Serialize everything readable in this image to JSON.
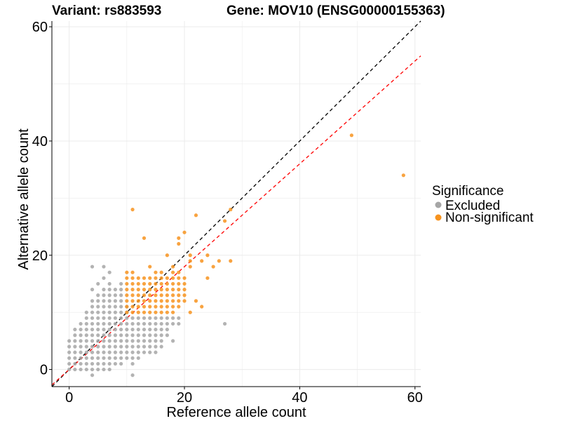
{
  "header": {
    "variant_title": "Variant: rs883593",
    "gene_title": "Gene: MOV10 (ENSG00000155363)"
  },
  "chart_data": {
    "type": "scatter",
    "xlabel": "Reference allele count",
    "ylabel": "Alternative allele count",
    "xlim": [
      -3,
      61
    ],
    "ylim": [
      -3,
      61
    ],
    "x_ticks": [
      0,
      20,
      40,
      60
    ],
    "y_ticks": [
      0,
      20,
      40,
      60
    ],
    "grid": true,
    "legend_position": "right",
    "legend_title": "Significance",
    "reference_lines": [
      {
        "kind": "identity",
        "slope": 1.0,
        "intercept": 0,
        "color": "#000000",
        "style": "dashed"
      },
      {
        "kind": "fit",
        "slope": 0.9,
        "intercept": 0,
        "color": "#ff0000",
        "style": "dashed"
      }
    ],
    "series": [
      {
        "name": "Excluded",
        "color": "#a6a6a6",
        "points": [
          [
            0,
            0
          ],
          [
            0,
            1
          ],
          [
            0,
            2
          ],
          [
            0,
            3
          ],
          [
            0,
            4
          ],
          [
            0,
            5
          ],
          [
            1,
            0
          ],
          [
            1,
            1
          ],
          [
            1,
            2
          ],
          [
            1,
            3
          ],
          [
            1,
            4
          ],
          [
            1,
            5
          ],
          [
            1,
            6
          ],
          [
            1,
            7
          ],
          [
            2,
            0
          ],
          [
            2,
            1
          ],
          [
            2,
            2
          ],
          [
            2,
            3
          ],
          [
            2,
            4
          ],
          [
            2,
            5
          ],
          [
            2,
            6
          ],
          [
            2,
            7
          ],
          [
            2,
            8
          ],
          [
            3,
            0
          ],
          [
            3,
            1
          ],
          [
            3,
            2
          ],
          [
            3,
            3
          ],
          [
            3,
            4
          ],
          [
            3,
            5
          ],
          [
            3,
            6
          ],
          [
            3,
            7
          ],
          [
            3,
            8
          ],
          [
            3,
            9
          ],
          [
            3,
            10
          ],
          [
            4,
            -1
          ],
          [
            4,
            0
          ],
          [
            4,
            1
          ],
          [
            4,
            2
          ],
          [
            4,
            3
          ],
          [
            4,
            4
          ],
          [
            4,
            5
          ],
          [
            4,
            6
          ],
          [
            4,
            7
          ],
          [
            4,
            8
          ],
          [
            4,
            9
          ],
          [
            4,
            10
          ],
          [
            4,
            11
          ],
          [
            4,
            12
          ],
          [
            4,
            14
          ],
          [
            5,
            0
          ],
          [
            5,
            1
          ],
          [
            5,
            2
          ],
          [
            5,
            3
          ],
          [
            5,
            4
          ],
          [
            5,
            5
          ],
          [
            5,
            6
          ],
          [
            5,
            7
          ],
          [
            5,
            8
          ],
          [
            5,
            9
          ],
          [
            5,
            10
          ],
          [
            5,
            11
          ],
          [
            5,
            12
          ],
          [
            5,
            13
          ],
          [
            5,
            15
          ],
          [
            6,
            0
          ],
          [
            6,
            1
          ],
          [
            6,
            2
          ],
          [
            6,
            3
          ],
          [
            6,
            4
          ],
          [
            6,
            5
          ],
          [
            6,
            6
          ],
          [
            6,
            7
          ],
          [
            6,
            8
          ],
          [
            6,
            9
          ],
          [
            6,
            10
          ],
          [
            6,
            11
          ],
          [
            6,
            12
          ],
          [
            6,
            13
          ],
          [
            6,
            14
          ],
          [
            6,
            16
          ],
          [
            7,
            0
          ],
          [
            7,
            1
          ],
          [
            7,
            2
          ],
          [
            7,
            3
          ],
          [
            7,
            4
          ],
          [
            7,
            5
          ],
          [
            7,
            6
          ],
          [
            7,
            7
          ],
          [
            7,
            8
          ],
          [
            7,
            9
          ],
          [
            7,
            10
          ],
          [
            7,
            11
          ],
          [
            7,
            12
          ],
          [
            7,
            13
          ],
          [
            7,
            14
          ],
          [
            7,
            15
          ],
          [
            7,
            17
          ],
          [
            8,
            1
          ],
          [
            8,
            2
          ],
          [
            8,
            3
          ],
          [
            8,
            4
          ],
          [
            8,
            5
          ],
          [
            8,
            6
          ],
          [
            8,
            7
          ],
          [
            8,
            8
          ],
          [
            8,
            9
          ],
          [
            8,
            10
          ],
          [
            8,
            11
          ],
          [
            8,
            12
          ],
          [
            8,
            13
          ],
          [
            8,
            14
          ],
          [
            9,
            1
          ],
          [
            9,
            2
          ],
          [
            9,
            3
          ],
          [
            9,
            4
          ],
          [
            9,
            5
          ],
          [
            9,
            6
          ],
          [
            9,
            7
          ],
          [
            9,
            8
          ],
          [
            9,
            9
          ],
          [
            9,
            10
          ],
          [
            9,
            11
          ],
          [
            9,
            12
          ],
          [
            9,
            13
          ],
          [
            9,
            14
          ],
          [
            9,
            15
          ],
          [
            10,
            2
          ],
          [
            10,
            3
          ],
          [
            10,
            4
          ],
          [
            10,
            5
          ],
          [
            10,
            6
          ],
          [
            10,
            7
          ],
          [
            10,
            8
          ],
          [
            10,
            9
          ],
          [
            10,
            10
          ],
          [
            10,
            11
          ],
          [
            11,
            -1
          ],
          [
            11,
            1
          ],
          [
            11,
            2
          ],
          [
            11,
            3
          ],
          [
            11,
            4
          ],
          [
            11,
            5
          ],
          [
            11,
            6
          ],
          [
            11,
            7
          ],
          [
            11,
            8
          ],
          [
            11,
            9
          ],
          [
            12,
            2
          ],
          [
            12,
            3
          ],
          [
            12,
            4
          ],
          [
            12,
            5
          ],
          [
            12,
            6
          ],
          [
            12,
            7
          ],
          [
            12,
            8
          ],
          [
            12,
            9
          ],
          [
            13,
            3
          ],
          [
            13,
            4
          ],
          [
            13,
            5
          ],
          [
            13,
            6
          ],
          [
            13,
            7
          ],
          [
            13,
            8
          ],
          [
            13,
            9
          ],
          [
            14,
            3
          ],
          [
            14,
            4
          ],
          [
            14,
            5
          ],
          [
            14,
            6
          ],
          [
            14,
            7
          ],
          [
            14,
            8
          ],
          [
            14,
            9
          ],
          [
            15,
            3
          ],
          [
            15,
            4
          ],
          [
            15,
            5
          ],
          [
            15,
            6
          ],
          [
            15,
            7
          ],
          [
            15,
            8
          ],
          [
            15,
            9
          ],
          [
            16,
            4
          ],
          [
            16,
            5
          ],
          [
            16,
            6
          ],
          [
            16,
            7
          ],
          [
            16,
            8
          ],
          [
            16,
            9
          ],
          [
            17,
            6
          ],
          [
            17,
            7
          ],
          [
            17,
            8
          ],
          [
            17,
            9
          ],
          [
            18,
            5
          ],
          [
            18,
            8
          ],
          [
            18,
            9
          ],
          [
            19,
            8
          ],
          [
            19,
            9
          ],
          [
            4,
            18
          ],
          [
            6,
            18
          ],
          [
            27,
            8
          ]
        ]
      },
      {
        "name": "Non-significant",
        "color": "#f7931e",
        "points": [
          [
            10,
            10
          ],
          [
            10,
            11
          ],
          [
            10,
            12
          ],
          [
            10,
            13
          ],
          [
            10,
            14
          ],
          [
            10,
            15
          ],
          [
            10,
            16
          ],
          [
            10,
            17
          ],
          [
            11,
            10
          ],
          [
            11,
            11
          ],
          [
            11,
            12
          ],
          [
            11,
            13
          ],
          [
            11,
            14
          ],
          [
            11,
            15
          ],
          [
            11,
            16
          ],
          [
            11,
            17
          ],
          [
            11,
            28
          ],
          [
            12,
            10
          ],
          [
            12,
            11
          ],
          [
            12,
            12
          ],
          [
            12,
            13
          ],
          [
            12,
            14
          ],
          [
            12,
            15
          ],
          [
            12,
            16
          ],
          [
            13,
            10
          ],
          [
            13,
            11
          ],
          [
            13,
            12
          ],
          [
            13,
            13
          ],
          [
            13,
            14
          ],
          [
            13,
            15
          ],
          [
            13,
            16
          ],
          [
            13,
            23
          ],
          [
            14,
            10
          ],
          [
            14,
            11
          ],
          [
            14,
            12
          ],
          [
            14,
            13
          ],
          [
            14,
            14
          ],
          [
            14,
            15
          ],
          [
            14,
            16
          ],
          [
            14,
            18
          ],
          [
            15,
            10
          ],
          [
            15,
            11
          ],
          [
            15,
            12
          ],
          [
            15,
            13
          ],
          [
            15,
            14
          ],
          [
            15,
            15
          ],
          [
            15,
            16
          ],
          [
            15,
            17
          ],
          [
            16,
            10
          ],
          [
            16,
            11
          ],
          [
            16,
            12
          ],
          [
            16,
            13
          ],
          [
            16,
            14
          ],
          [
            16,
            15
          ],
          [
            16,
            16
          ],
          [
            16,
            17
          ],
          [
            17,
            10
          ],
          [
            17,
            11
          ],
          [
            17,
            12
          ],
          [
            17,
            13
          ],
          [
            17,
            14
          ],
          [
            17,
            15
          ],
          [
            17,
            16
          ],
          [
            17,
            20
          ],
          [
            18,
            10
          ],
          [
            18,
            11
          ],
          [
            18,
            12
          ],
          [
            18,
            13
          ],
          [
            18,
            14
          ],
          [
            18,
            15
          ],
          [
            18,
            16
          ],
          [
            18,
            17
          ],
          [
            18,
            18
          ],
          [
            19,
            11
          ],
          [
            19,
            12
          ],
          [
            19,
            13
          ],
          [
            19,
            14
          ],
          [
            19,
            15
          ],
          [
            19,
            16
          ],
          [
            19,
            17
          ],
          [
            19,
            22
          ],
          [
            19,
            23
          ],
          [
            20,
            12
          ],
          [
            20,
            13
          ],
          [
            20,
            14
          ],
          [
            20,
            15
          ],
          [
            20,
            16
          ],
          [
            20,
            24
          ],
          [
            21,
            10
          ],
          [
            21,
            18
          ],
          [
            21,
            19
          ],
          [
            21,
            20
          ],
          [
            22,
            12
          ],
          [
            22,
            27
          ],
          [
            23,
            11
          ],
          [
            23,
            19
          ],
          [
            24,
            16
          ],
          [
            24,
            20
          ],
          [
            25,
            18
          ],
          [
            26,
            19
          ],
          [
            27,
            26
          ],
          [
            28,
            19
          ],
          [
            28,
            28
          ],
          [
            49,
            41
          ],
          [
            58,
            34
          ]
        ]
      }
    ]
  }
}
